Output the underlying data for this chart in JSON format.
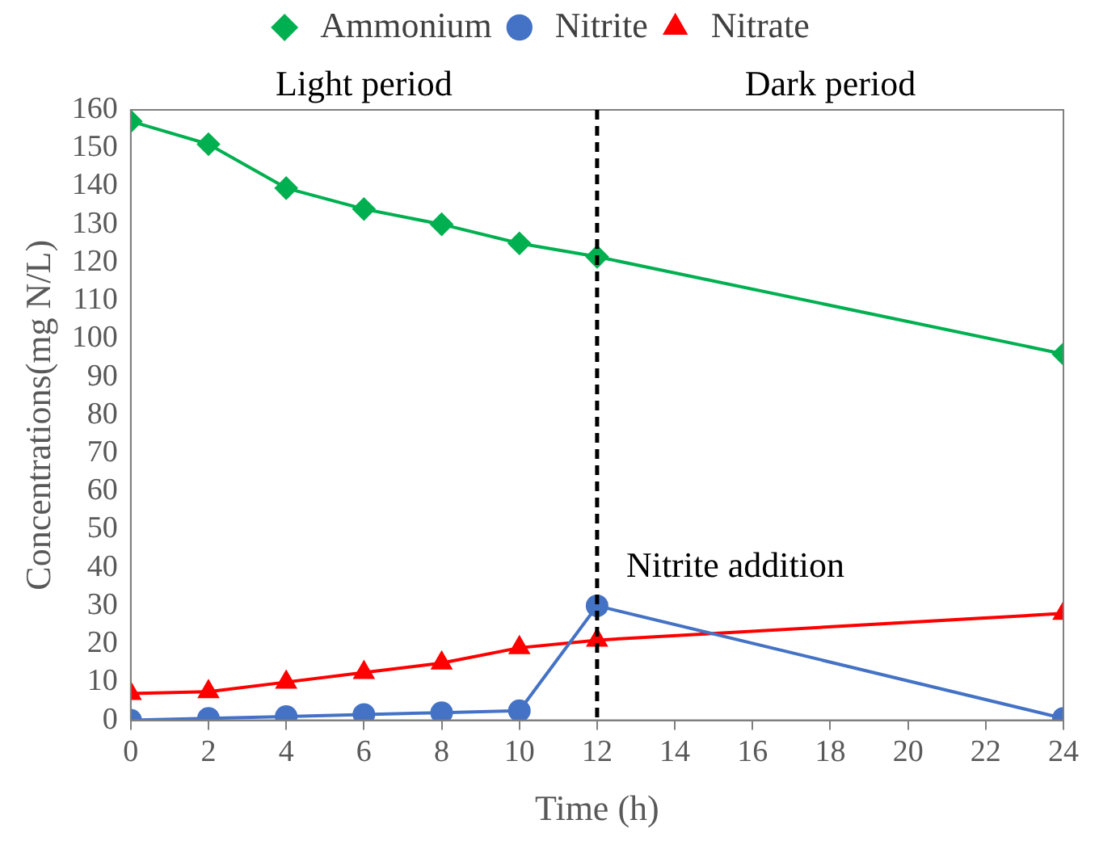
{
  "chart_data": {
    "type": "line",
    "xlabel": "Time (h)",
    "ylabel": "Concentrations(mg N/L)",
    "x": [
      0,
      2,
      4,
      6,
      8,
      10,
      12,
      24
    ],
    "series": [
      {
        "name": "Ammonium",
        "color": "#00b050",
        "marker": "diamond",
        "values": [
          157,
          151,
          139.5,
          134,
          130,
          125,
          121.5,
          96
        ]
      },
      {
        "name": "Nitrite",
        "color": "#4472c4",
        "marker": "circle",
        "values": [
          0,
          0.5,
          1,
          1.5,
          2,
          2.5,
          30,
          0.5
        ]
      },
      {
        "name": "Nitrate",
        "color": "#ff0000",
        "marker": "triangle",
        "values": [
          7,
          7.5,
          10,
          12.5,
          15,
          19,
          21,
          28
        ]
      }
    ],
    "xlim": [
      0,
      24
    ],
    "xticks": [
      0,
      2,
      4,
      6,
      8,
      10,
      12,
      14,
      16,
      18,
      20,
      22,
      24
    ],
    "ylim": [
      0,
      160
    ],
    "yticks": [
      0,
      10,
      20,
      30,
      40,
      50,
      60,
      70,
      80,
      90,
      100,
      110,
      120,
      130,
      140,
      150,
      160
    ],
    "ref_lines": [
      {
        "axis": "x",
        "value": 12,
        "label": "Nitrite addition",
        "color": "#000000",
        "line_style": "dashed"
      }
    ],
    "annotations": [
      "Light period",
      "Dark period"
    ],
    "grid": false,
    "legend": "top"
  }
}
